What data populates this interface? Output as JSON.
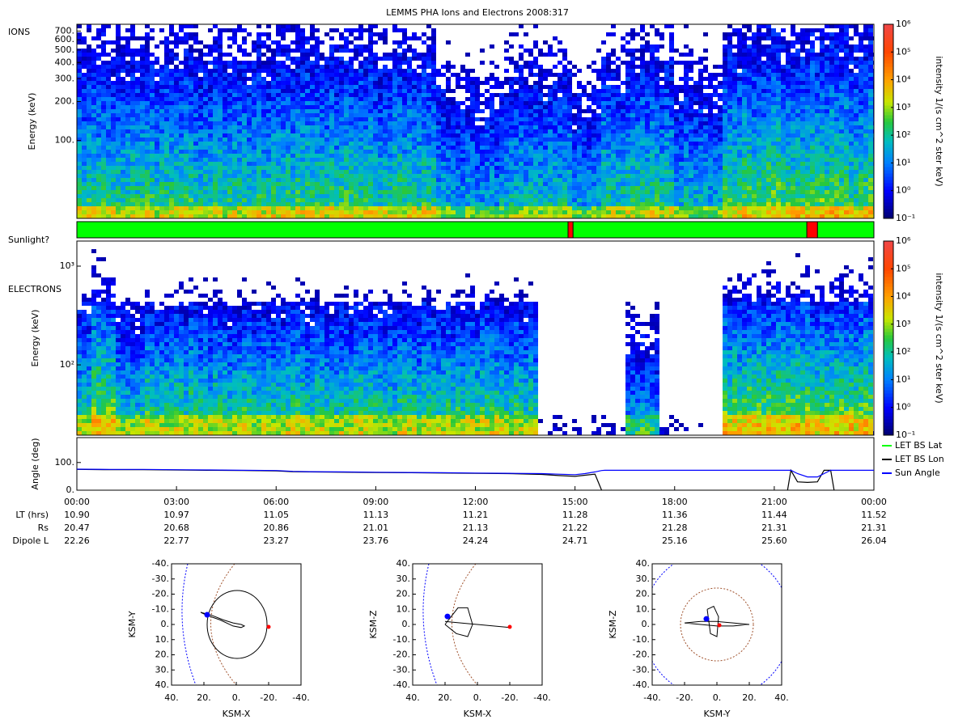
{
  "chart_data": [
    {
      "type": "spectrogram",
      "title": "LEMMS PHA Ions and Electrons  2008:317",
      "panel_label": "IONS",
      "ylabel": "Energy (keV)",
      "ylog": true,
      "ylim": [
        25,
        790
      ],
      "xlim": [
        0,
        24
      ],
      "yticks": [
        {
          "value": 100,
          "label": "100."
        },
        {
          "value": 200,
          "label": "200."
        },
        {
          "value": 300,
          "label": "300."
        },
        {
          "value": 400,
          "label": "400."
        },
        {
          "value": 500,
          "label": "500."
        },
        {
          "value": 600,
          "label": "600."
        },
        {
          "value": 700,
          "label": "700."
        }
      ],
      "colorbar": {
        "label": "intensity 1/(s cm^2 ster keV)",
        "log": true,
        "lim": [
          0.1,
          1000000
        ],
        "ticks": [
          {
            "value": 0.1,
            "label": "10⁻¹"
          },
          {
            "value": 1,
            "label": "10⁰"
          },
          {
            "value": 10,
            "label": "10¹"
          },
          {
            "value": 100,
            "label": "10²"
          },
          {
            "value": 1000,
            "label": "10³"
          },
          {
            "value": 10000,
            "label": "10⁴"
          },
          {
            "value": 100000,
            "label": "10⁵"
          },
          {
            "value": 1000000,
            "label": "10⁶"
          }
        ]
      }
    },
    {
      "type": "timeline",
      "label": "Sunlight?",
      "xlim": [
        0,
        24
      ],
      "color": "#00ff00",
      "shadow_color": "#ff0000",
      "shadows": [
        [
          14.79,
          14.94
        ],
        [
          21.98,
          22.3
        ]
      ]
    },
    {
      "type": "spectrogram",
      "panel_label": "ELECTRONS",
      "ylabel": "Energy (keV)",
      "ylog": true,
      "ylim": [
        19.4,
        1795
      ],
      "xlim": [
        0,
        24
      ],
      "yticks": [
        {
          "value": 100,
          "label": "10²"
        },
        {
          "value": 1000,
          "label": "10³"
        }
      ],
      "colorbar": {
        "label": "intensity 1/(s cm^2 ster keV)",
        "log": true,
        "lim": [
          0.1,
          1000000
        ],
        "ticks": [
          {
            "value": 0.1,
            "label": "10⁻¹"
          },
          {
            "value": 1,
            "label": "10⁰"
          },
          {
            "value": 10,
            "label": "10¹"
          },
          {
            "value": 100,
            "label": "10²"
          },
          {
            "value": 1000,
            "label": "10³"
          },
          {
            "value": 10000,
            "label": "10⁴"
          },
          {
            "value": 100000,
            "label": "10⁵"
          },
          {
            "value": 1000000,
            "label": "10⁶"
          }
        ]
      }
    },
    {
      "type": "line",
      "ylabel": "Angle (deg)",
      "xlim": [
        0,
        24
      ],
      "ylim": [
        0,
        190
      ],
      "yticks": [
        {
          "value": 0,
          "label": "0."
        },
        {
          "value": 100,
          "label": "100."
        }
      ],
      "xticks": [
        {
          "value": 0,
          "label": "00:00"
        },
        {
          "value": 3,
          "label": "03:00"
        },
        {
          "value": 6,
          "label": "06:00"
        },
        {
          "value": 9,
          "label": "09:00"
        },
        {
          "value": 12,
          "label": "12:00"
        },
        {
          "value": 15,
          "label": "15:00"
        },
        {
          "value": 18,
          "label": "18:00"
        },
        {
          "value": 21,
          "label": "21:00"
        },
        {
          "value": 24,
          "label": "00:00"
        }
      ],
      "legend": "outside-right",
      "x": [
        0,
        1,
        2,
        3,
        4,
        5,
        6,
        6.5,
        7,
        8,
        9,
        10,
        11,
        12,
        13,
        14,
        14.5,
        15,
        15.3,
        15.6,
        15.8,
        15.9,
        16.2,
        18,
        20,
        21.4,
        21.5,
        21.7,
        22,
        22.3,
        22.5,
        22.7,
        22.8,
        23,
        24
      ],
      "series": [
        {
          "name": "LET BS Lat",
          "color": "#00ff00",
          "values": [
            null,
            null,
            null,
            null,
            null,
            null,
            null,
            null,
            null,
            null,
            null,
            null,
            null,
            null,
            null,
            null,
            null,
            null,
            null,
            null,
            null,
            null,
            null,
            null,
            null,
            null,
            null,
            null,
            null,
            null,
            null,
            null,
            null,
            null,
            null
          ]
        },
        {
          "name": "LET BS Lon",
          "color": "#000000",
          "values": [
            75,
            74,
            74,
            73,
            72,
            71,
            70,
            67,
            66,
            65,
            64,
            63,
            62,
            61,
            60,
            57,
            53,
            50,
            54,
            58,
            0,
            null,
            null,
            null,
            null,
            0,
            72,
            30,
            28,
            30,
            72,
            72,
            0,
            null,
            null
          ]
        },
        {
          "name": "Sun Angle",
          "color": "#0000ff",
          "values": [
            76,
            75,
            75,
            74,
            73,
            72,
            71,
            68,
            67,
            66,
            65,
            64,
            63,
            62,
            61,
            60,
            58,
            56,
            60,
            66,
            71,
            72,
            72,
            72,
            72,
            72,
            72,
            60,
            48,
            48,
            60,
            72,
            72,
            72,
            72
          ]
        }
      ],
      "ephemeris": [
        {
          "label": "LT (hrs)",
          "values": [
            "10.90",
            "10.97",
            "11.05",
            "11.13",
            "11.21",
            "11.28",
            "11.36",
            "11.44",
            "11.52"
          ]
        },
        {
          "label": "Rs",
          "values": [
            "20.47",
            "20.68",
            "20.86",
            "21.01",
            "21.13",
            "21.22",
            "21.28",
            "21.31",
            "21.31"
          ]
        },
        {
          "label": "Dipole L",
          "values": [
            "22.26",
            "22.77",
            "23.27",
            "23.76",
            "24.24",
            "24.71",
            "25.16",
            "25.60",
            "26.04"
          ]
        }
      ]
    },
    {
      "type": "orbit",
      "xlabel": "KSM-X",
      "ylabel": "KSM-Y",
      "xlim": [
        40,
        -40
      ],
      "ylim": [
        40,
        -40
      ],
      "xticks": [
        {
          "value": 40,
          "label": "40."
        },
        {
          "value": 20,
          "label": "20."
        },
        {
          "value": 0,
          "label": "0."
        },
        {
          "value": -20,
          "label": "-20."
        },
        {
          "value": -40,
          "label": "-40."
        }
      ],
      "yticks": [
        {
          "value": -40,
          "label": "-40."
        },
        {
          "value": -30,
          "label": "-30."
        },
        {
          "value": -20,
          "label": "-20."
        },
        {
          "value": -10,
          "label": "-10."
        },
        {
          "value": 0,
          "label": "0."
        },
        {
          "value": 10,
          "label": "10."
        },
        {
          "value": 20,
          "label": "20."
        },
        {
          "value": 30,
          "label": "30."
        },
        {
          "value": 40,
          "label": "40."
        }
      ],
      "trajectory": {
        "x": [
          22,
          15,
          8,
          2,
          -3,
          -5,
          -3,
          2,
          10,
          18,
          22
        ],
        "y": [
          -8,
          -6,
          -3,
          -1,
          0,
          1,
          2,
          1,
          -3,
          -6,
          -8
        ]
      },
      "start": {
        "x": 18,
        "y": -6.4,
        "color": "#0000ff"
      },
      "spacecraft": {
        "x": -20,
        "y": 1.6,
        "color": "#ff0000"
      }
    },
    {
      "type": "orbit",
      "xlabel": "KSM-X",
      "ylabel": "KSM-Z",
      "xlim": [
        40,
        -40
      ],
      "ylim": [
        -40,
        40
      ],
      "xticks": [
        {
          "value": 40,
          "label": "40."
        },
        {
          "value": 20,
          "label": "20."
        },
        {
          "value": 0,
          "label": "0."
        },
        {
          "value": -20,
          "label": "-20."
        },
        {
          "value": -40,
          "label": "-40."
        }
      ],
      "yticks": [
        {
          "value": 40,
          "label": "40."
        },
        {
          "value": 30,
          "label": "30."
        },
        {
          "value": 20,
          "label": "20."
        },
        {
          "value": 10,
          "label": "10."
        },
        {
          "value": 0,
          "label": "0."
        },
        {
          "value": -10,
          "label": "-10."
        },
        {
          "value": -20,
          "label": "-20."
        },
        {
          "value": -30,
          "label": "-30."
        },
        {
          "value": -40,
          "label": "-40."
        }
      ],
      "trajectory": {
        "x": [
          20,
          15,
          5,
          0,
          -10,
          -20,
          null,
          20,
          12,
          6,
          3,
          6,
          13,
          20
        ],
        "y": [
          2,
          1.5,
          0.5,
          0,
          -1,
          -2,
          null,
          0,
          11,
          11,
          0,
          -8,
          -6,
          0
        ]
      },
      "start": {
        "x": 18.5,
        "y": 5.3,
        "color": "#0000ff"
      },
      "spacecraft": {
        "x": -20,
        "y": -1.6,
        "color": "#ff0000"
      }
    },
    {
      "type": "orbit",
      "xlabel": "KSM-Y",
      "ylabel": "KSM-Z",
      "xlim": [
        -40,
        40
      ],
      "ylim": [
        -40,
        40
      ],
      "xticks": [
        {
          "value": -40,
          "label": "-40."
        },
        {
          "value": -20,
          "label": "-20."
        },
        {
          "value": 0,
          "label": "0."
        },
        {
          "value": 20,
          "label": "20."
        },
        {
          "value": 40,
          "label": "40."
        }
      ],
      "yticks": [
        {
          "value": 40,
          "label": "40."
        },
        {
          "value": 30,
          "label": "30."
        },
        {
          "value": 20,
          "label": "20."
        },
        {
          "value": 10,
          "label": "10."
        },
        {
          "value": 0,
          "label": "0."
        },
        {
          "value": -10,
          "label": "-10."
        },
        {
          "value": -20,
          "label": "-20."
        },
        {
          "value": -30,
          "label": "-30."
        },
        {
          "value": -40,
          "label": "-40."
        }
      ],
      "trajectory": {
        "x": [
          -20,
          -10,
          0,
          10,
          20,
          10,
          0,
          -10,
          -20,
          null,
          -6,
          -2,
          1,
          0,
          -4,
          -6
        ],
        "y": [
          1,
          2,
          2,
          1,
          0,
          -1,
          -1,
          0,
          1,
          null,
          10,
          12,
          5,
          -8,
          -6,
          10
        ]
      },
      "start": {
        "x": -6.5,
        "y": 3.7,
        "color": "#0000ff"
      },
      "spacecraft": {
        "x": 1.5,
        "y": -0.5,
        "color": "#ff0000"
      }
    }
  ]
}
